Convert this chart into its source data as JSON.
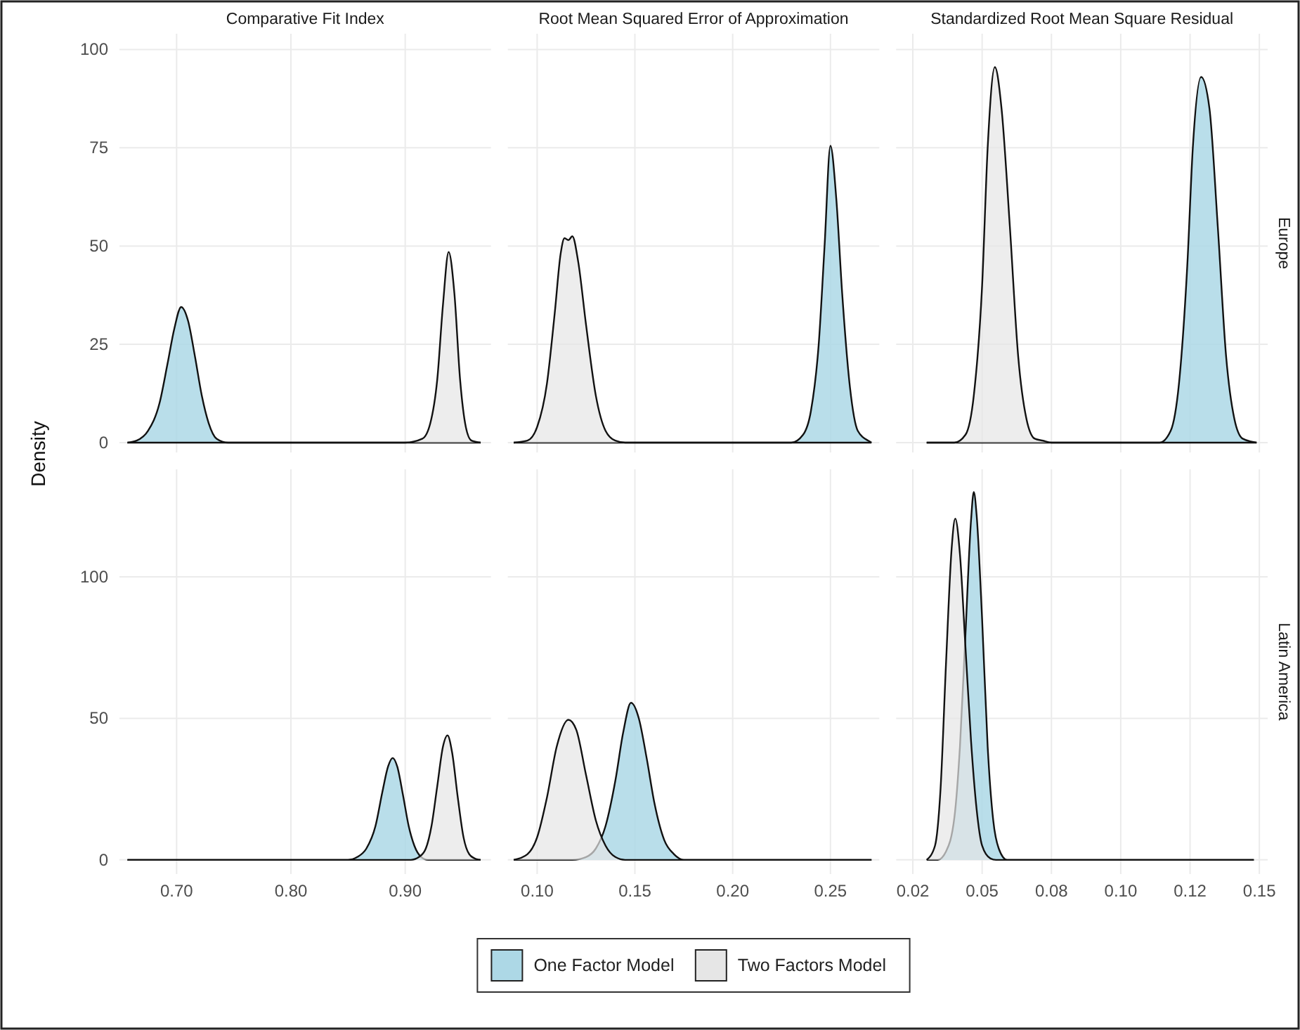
{
  "chart_data": [
    {
      "type": "area",
      "title": "Comparative Fit Index",
      "ylabel": "Density",
      "xlim": [
        0.65,
        0.975
      ],
      "xticks": [
        0.7,
        0.8,
        0.9
      ],
      "ylim": [
        -2.5,
        104
      ],
      "yticks": [
        0,
        25,
        50,
        75,
        100
      ],
      "grid": true,
      "tick_labels": "y",
      "series": [
        {
          "color": "#add8e6",
          "x": [
            0.657,
            0.665,
            0.675,
            0.685,
            0.692,
            0.698,
            0.704,
            0.71,
            0.716,
            0.722,
            0.728,
            0.735,
            0.745,
            0.966
          ],
          "values": [
            0,
            0.5,
            3,
            10,
            20,
            29,
            34.5,
            31,
            22,
            12,
            5,
            1,
            0,
            0
          ]
        },
        {
          "color": "#e6e6e6",
          "x": [
            0.657,
            0.9,
            0.915,
            0.922,
            0.928,
            0.933,
            0.938,
            0.943,
            0.948,
            0.953,
            0.958,
            0.966
          ],
          "values": [
            0,
            0,
            1,
            5,
            16,
            35,
            48.5,
            38,
            16,
            4,
            0.5,
            0
          ]
        }
      ]
    },
    {
      "type": "area",
      "title": "Root Mean Squared Error of Approximation",
      "xlim": [
        0.085,
        0.275
      ],
      "xticks": [
        0.1,
        0.15,
        0.2,
        0.25
      ],
      "ylim": [
        -2.5,
        104
      ],
      "yticks": [
        0,
        25,
        50,
        75,
        100
      ],
      "grid": true,
      "tick_labels": false,
      "series": [
        {
          "color": "#add8e6",
          "x": [
            0.088,
            0.23,
            0.236,
            0.24,
            0.244,
            0.247,
            0.25,
            0.253,
            0.256,
            0.26,
            0.264,
            0.27,
            0.271
          ],
          "values": [
            0,
            0,
            2,
            8,
            25,
            50,
            75.5,
            62,
            38,
            14,
            3,
            0.3,
            0
          ]
        },
        {
          "color": "#e6e6e6",
          "x": [
            0.088,
            0.095,
            0.1,
            0.105,
            0.109,
            0.112,
            0.114,
            0.116,
            0.118,
            0.121,
            0.125,
            0.13,
            0.135,
            0.14,
            0.145,
            0.271
          ],
          "values": [
            0,
            0.5,
            4,
            15,
            33,
            48,
            52,
            51.5,
            52.5,
            46,
            30,
            12,
            3,
            0.5,
            0,
            0
          ]
        }
      ]
    },
    {
      "type": "area",
      "title": "Standardized Root Mean Square Residual",
      "y2label": "Europe",
      "xlim": [
        0.019,
        0.153
      ],
      "xticks": [
        0.025,
        0.05,
        0.075,
        0.1,
        0.125,
        0.15
      ],
      "ylim": [
        -2.5,
        104
      ],
      "yticks": [
        0,
        25,
        50,
        75,
        100
      ],
      "grid": true,
      "tick_labels": false,
      "series": [
        {
          "color": "#add8e6",
          "x": [
            0.03,
            0.114,
            0.118,
            0.121,
            0.124,
            0.126,
            0.129,
            0.132,
            0.135,
            0.138,
            0.141,
            0.144,
            0.149
          ],
          "values": [
            0,
            0,
            3,
            15,
            45,
            75,
            93,
            85,
            55,
            22,
            6,
            1,
            0
          ]
        },
        {
          "color": "#e6e6e6",
          "x": [
            0.03,
            0.04,
            0.044,
            0.047,
            0.05,
            0.052,
            0.0546,
            0.057,
            0.06,
            0.063,
            0.066,
            0.069,
            0.072,
            0.075,
            0.149
          ],
          "values": [
            0,
            0,
            2,
            12,
            40,
            75,
            95.5,
            85,
            55,
            22,
            6,
            1,
            0.5,
            0,
            0
          ]
        }
      ]
    },
    {
      "type": "area",
      "xlim": [
        0.65,
        0.975
      ],
      "xticks": [
        {
          "value": 0.7,
          "label": "0.70"
        },
        {
          "value": 0.8,
          "label": "0.80"
        },
        {
          "value": 0.9,
          "label": "0.90"
        }
      ],
      "ylim": [
        -5,
        138
      ],
      "yticks": [
        0,
        50,
        100
      ],
      "grid": true,
      "series": [
        {
          "color": "#add8e6",
          "x": [
            0.657,
            0.85,
            0.858,
            0.866,
            0.874,
            0.88,
            0.885,
            0.889,
            0.893,
            0.898,
            0.903,
            0.908,
            0.914,
            0.92,
            0.966
          ],
          "values": [
            0,
            0,
            1,
            4,
            12,
            24,
            33,
            36,
            33,
            23,
            12,
            5,
            1,
            0,
            0
          ]
        },
        {
          "color": "#e6e6e6",
          "x": [
            0.657,
            0.905,
            0.912,
            0.918,
            0.923,
            0.928,
            0.933,
            0.937,
            0.941,
            0.946,
            0.951,
            0.956,
            0.962,
            0.966
          ],
          "values": [
            0,
            0,
            1,
            4,
            12,
            26,
            40,
            44,
            38,
            22,
            8,
            2,
            0.3,
            0
          ]
        }
      ]
    },
    {
      "type": "area",
      "xlim": [
        0.085,
        0.275
      ],
      "xticks": [
        {
          "value": 0.1,
          "label": "0.10"
        },
        0.15,
        {
          "value": 0.2,
          "label": "0.20"
        },
        0.25
      ],
      "ylim": [
        -5,
        138
      ],
      "yticks": [
        0,
        50,
        100
      ],
      "grid": true,
      "tick_labels": "x",
      "series": [
        {
          "color": "#add8e6",
          "x": [
            0.088,
            0.118,
            0.125,
            0.13,
            0.135,
            0.14,
            0.144,
            0.148,
            0.152,
            0.156,
            0.16,
            0.165,
            0.17,
            0.175,
            0.271
          ],
          "values": [
            0,
            0,
            1,
            4,
            12,
            28,
            45,
            55.5,
            50,
            36,
            20,
            7,
            2,
            0,
            0
          ]
        },
        {
          "color": "#e6e6e6",
          "x": [
            0.088,
            0.095,
            0.1,
            0.105,
            0.11,
            0.116,
            0.12,
            0.125,
            0.13,
            0.135,
            0.14,
            0.145,
            0.271
          ],
          "values": [
            0,
            2,
            8,
            22,
            40,
            49.5,
            46,
            30,
            14,
            5,
            1,
            0,
            0
          ]
        }
      ]
    },
    {
      "type": "area",
      "y2label": "Latin America",
      "legend": "bottom",
      "xlim": [
        0.019,
        0.153
      ],
      "xticks": [
        {
          "value": 0.025,
          "label": "0.02"
        },
        0.05,
        {
          "value": 0.075,
          "label": "0.08"
        },
        {
          "value": 0.1,
          "label": "0.10"
        },
        {
          "value": 0.125,
          "label": "0.12"
        },
        {
          "value": 0.15,
          "label": "0.15"
        }
      ],
      "ylim": [
        -5,
        138
      ],
      "yticks": [
        0,
        50,
        100
      ],
      "grid": true,
      "tick_labels": "x",
      "series": [
        {
          "name": "One Factor Model",
          "color": "#add8e6",
          "x": [
            0.03,
            0.034,
            0.037,
            0.04,
            0.042,
            0.044,
            0.046,
            0.047,
            0.048,
            0.05,
            0.052,
            0.054,
            0.056,
            0.059,
            0.148
          ],
          "values": [
            0,
            0,
            3,
            15,
            40,
            80,
            120,
            130,
            122,
            85,
            40,
            14,
            4,
            0,
            0
          ]
        },
        {
          "name": "Two Factors Model",
          "color": "#e6e6e6",
          "x": [
            0.03,
            0.033,
            0.035,
            0.037,
            0.039,
            0.0403,
            0.042,
            0.044,
            0.046,
            0.048,
            0.05,
            0.053,
            0.055,
            0.148
          ],
          "values": [
            0,
            5,
            25,
            70,
            110,
            120.6,
            108,
            75,
            42,
            18,
            5,
            0.5,
            0,
            0
          ]
        }
      ]
    }
  ]
}
